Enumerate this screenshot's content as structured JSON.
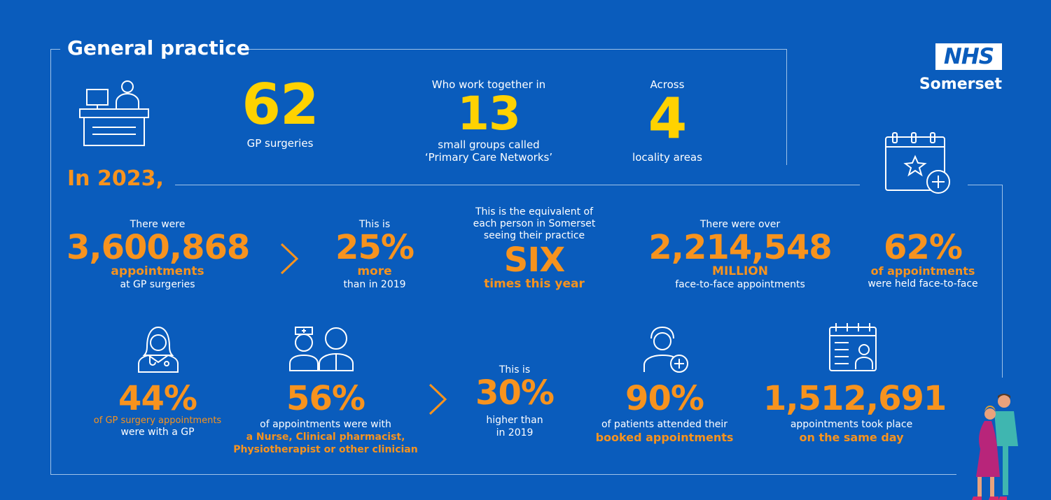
{
  "brand": {
    "nhs": "NHS",
    "org": "Somerset"
  },
  "headings": {
    "general_practice": "General practice",
    "in_2023": "In 2023,"
  },
  "top": {
    "surgeries": {
      "number": "62",
      "label": "GP surgeries"
    },
    "pcn": {
      "intro": "Who work together in",
      "number": "13",
      "line1": "small groups called",
      "line2": "‘Primary Care Networks’"
    },
    "locality": {
      "intro": "Across",
      "number": "4",
      "label": "locality areas"
    }
  },
  "row1": {
    "appointments": {
      "intro": "There were",
      "number": "3,600,868",
      "highlight": "appointments",
      "label": "at GP surgeries"
    },
    "more": {
      "intro": "This is",
      "number": "25%",
      "highlight": "more",
      "label": "than in 2019"
    },
    "six": {
      "line1": "This is the equivalent of",
      "line2": "each person in Somerset",
      "line3": "seeing their practice",
      "number": "SIX",
      "highlight": "times this year"
    },
    "f2f": {
      "intro": "There were over",
      "number": "2,214,548",
      "highlight": "MILLION",
      "label": "face-to-face appointments"
    },
    "f2f_pct": {
      "number": "62%",
      "highlight": "of appointments",
      "label": "were held face-to-face"
    }
  },
  "row2": {
    "gp": {
      "number": "44%",
      "highlight": "of GP surgery appointments",
      "label": "were with a GP"
    },
    "other": {
      "number": "56%",
      "label": "of appointments were with",
      "highlight1": "a Nurse, Clinical pharmacist,",
      "highlight2": "Physiotherapist or other clinician"
    },
    "higher": {
      "intro": "This is",
      "number": "30%",
      "line1": "higher than",
      "line2": "in 2019"
    },
    "attended": {
      "number": "90%",
      "label": "of patients attended their",
      "highlight": "booked appointments"
    },
    "same_day": {
      "number": "1,512,691",
      "label": "appointments took place",
      "highlight": "on the same day"
    }
  },
  "icons": [
    "reception-desk-icon",
    "calendar-star-plus-icon",
    "female-doctor-icon",
    "nurse-and-clinician-icon",
    "patient-plus-icon",
    "calendar-doctor-icon",
    "couple-illustration"
  ],
  "colors": {
    "background": "#0a5cbc",
    "yellow": "#ffd200",
    "orange": "#f7931e",
    "white": "#ffffff"
  }
}
